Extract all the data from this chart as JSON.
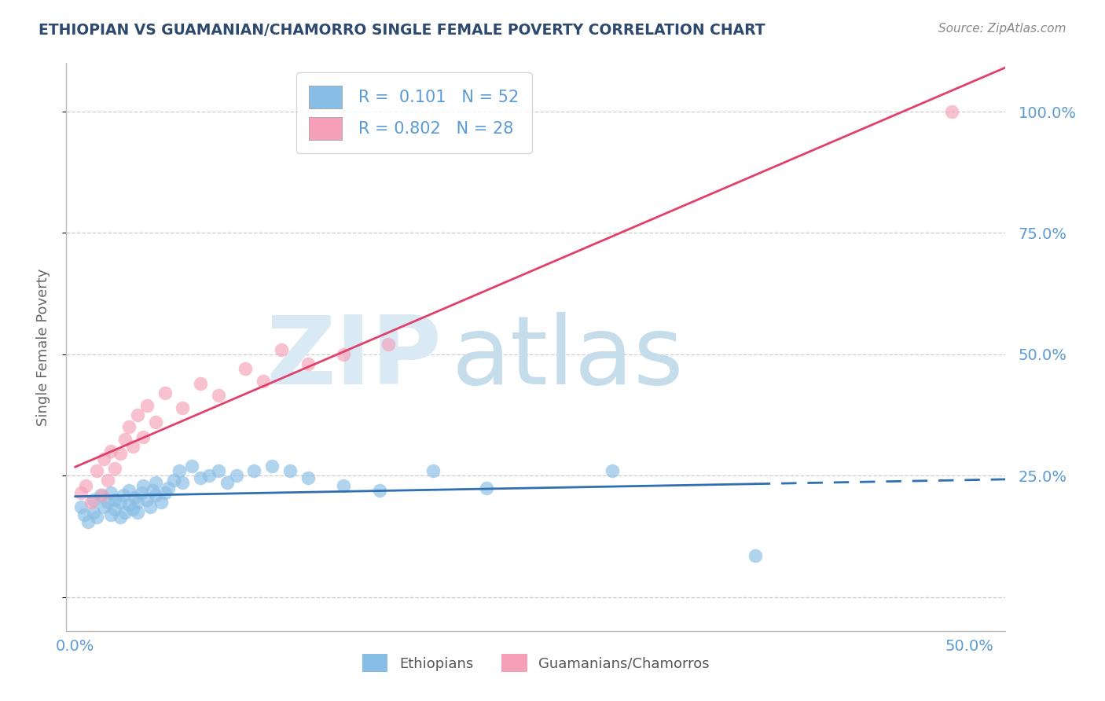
{
  "title": "ETHIOPIAN VS GUAMANIAN/CHAMORRO SINGLE FEMALE POVERTY CORRELATION CHART",
  "source": "Source: ZipAtlas.com",
  "ylabel": "Single Female Poverty",
  "yticks": [
    0.0,
    0.25,
    0.5,
    0.75,
    1.0
  ],
  "ytick_labels_right": [
    "",
    "25.0%",
    "50.0%",
    "75.0%",
    "100.0%"
  ],
  "xticks": [
    0.0,
    0.25,
    0.5
  ],
  "xtick_labels": [
    "0.0%",
    "",
    "50.0%"
  ],
  "xlim": [
    -0.005,
    0.52
  ],
  "ylim": [
    -0.07,
    1.1
  ],
  "legend_R_blue": "0.101",
  "legend_N_blue": "52",
  "legend_R_pink": "0.802",
  "legend_N_pink": "28",
  "blue_color": "#88bde6",
  "pink_color": "#f5a0b8",
  "trend_blue_color": "#3070b0",
  "trend_pink_color": "#e0406a",
  "axis_tick_color": "#5b9bd5",
  "grid_color": "#cccccc",
  "title_color": "#2d4a6e",
  "label_color": "#666666",
  "source_color": "#888888",
  "watermark_zip_color": "#daeaf4",
  "watermark_atlas_color": "#c5dcea",
  "ethiopian_x": [
    0.003,
    0.005,
    0.007,
    0.01,
    0.01,
    0.012,
    0.014,
    0.016,
    0.018,
    0.02,
    0.02,
    0.022,
    0.022,
    0.025,
    0.025,
    0.027,
    0.028,
    0.03,
    0.03,
    0.032,
    0.033,
    0.035,
    0.035,
    0.037,
    0.038,
    0.04,
    0.042,
    0.043,
    0.045,
    0.045,
    0.048,
    0.05,
    0.052,
    0.055,
    0.058,
    0.06,
    0.065,
    0.07,
    0.075,
    0.08,
    0.085,
    0.09,
    0.1,
    0.11,
    0.12,
    0.13,
    0.15,
    0.17,
    0.2,
    0.23,
    0.3,
    0.38
  ],
  "ethiopian_y": [
    0.185,
    0.17,
    0.155,
    0.175,
    0.2,
    0.165,
    0.21,
    0.185,
    0.195,
    0.17,
    0.215,
    0.18,
    0.2,
    0.165,
    0.195,
    0.21,
    0.175,
    0.19,
    0.22,
    0.18,
    0.205,
    0.175,
    0.195,
    0.215,
    0.23,
    0.2,
    0.185,
    0.22,
    0.21,
    0.235,
    0.195,
    0.215,
    0.225,
    0.24,
    0.26,
    0.235,
    0.27,
    0.245,
    0.25,
    0.26,
    0.235,
    0.25,
    0.26,
    0.27,
    0.26,
    0.245,
    0.23,
    0.22,
    0.26,
    0.225,
    0.26,
    0.085
  ],
  "guamanian_x": [
    0.003,
    0.006,
    0.009,
    0.012,
    0.015,
    0.016,
    0.018,
    0.02,
    0.022,
    0.025,
    0.028,
    0.03,
    0.032,
    0.035,
    0.038,
    0.04,
    0.045,
    0.05,
    0.06,
    0.07,
    0.08,
    0.095,
    0.105,
    0.115,
    0.13,
    0.15,
    0.175,
    0.49
  ],
  "guamanian_y": [
    0.215,
    0.23,
    0.195,
    0.26,
    0.21,
    0.285,
    0.24,
    0.3,
    0.265,
    0.295,
    0.325,
    0.35,
    0.31,
    0.375,
    0.33,
    0.395,
    0.36,
    0.42,
    0.39,
    0.44,
    0.415,
    0.47,
    0.445,
    0.51,
    0.48,
    0.5,
    0.52,
    1.0
  ],
  "blue_trend_start_x": 0.0,
  "blue_trend_solid_end_x": 0.38,
  "blue_trend_dash_end_x": 0.52,
  "pink_trend_start_x": 0.0,
  "pink_trend_end_x": 0.52
}
